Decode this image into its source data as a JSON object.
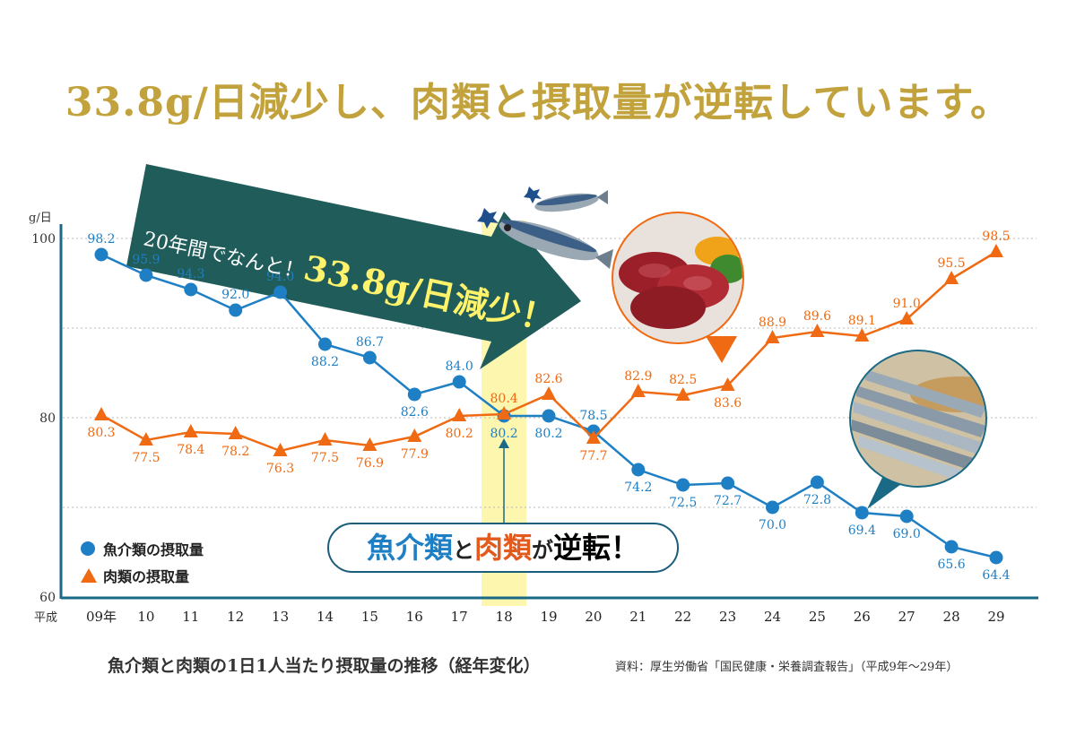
{
  "headline": "33.8g/日減少し、肉類と摂取量が逆転しています。",
  "banner": {
    "prefix": "20年間でなんと！",
    "amount": "33.8g/日減少！"
  },
  "callout": {
    "part1": "魚介類",
    "part2": "と",
    "part3": "肉類",
    "part4": "が",
    "part5": "逆転！"
  },
  "legend": {
    "fish": "魚介類の摂取量",
    "meat": "肉類の摂取量"
  },
  "caption": "魚介類と肉類の1日1人当たり摂取量の推移（経年変化）",
  "source": "資料：厚生労働省「国民健康・栄養調査報告」（平成9年〜29年）",
  "chart_data": {
    "type": "line",
    "ylabel": "g/日",
    "xlabel_prefix": "平成",
    "ylim": [
      60,
      100
    ],
    "yticks": [
      60,
      80,
      100
    ],
    "grid": true,
    "legend_position": "bottom-left",
    "highlight_category": "18",
    "categories": [
      "09年",
      "10",
      "11",
      "12",
      "13",
      "14",
      "15",
      "16",
      "17",
      "18",
      "19",
      "20",
      "21",
      "22",
      "23",
      "24",
      "25",
      "26",
      "27",
      "28",
      "29"
    ],
    "series": [
      {
        "name": "魚介類の摂取量",
        "color": "#1f7fc4",
        "marker": "circle",
        "values": [
          98.2,
          95.9,
          94.3,
          92.0,
          94.0,
          88.2,
          86.7,
          82.6,
          84.0,
          80.2,
          80.2,
          78.5,
          74.2,
          72.5,
          72.7,
          70.0,
          72.8,
          69.4,
          69.0,
          65.6,
          64.4
        ]
      },
      {
        "name": "肉類の摂取量",
        "color": "#ef6a12",
        "marker": "triangle",
        "values": [
          80.3,
          77.5,
          78.4,
          78.2,
          76.3,
          77.5,
          76.9,
          77.9,
          80.2,
          80.4,
          82.6,
          77.7,
          82.9,
          82.5,
          83.6,
          88.9,
          89.6,
          89.1,
          91.0,
          95.5,
          98.5
        ]
      }
    ],
    "fish_label_positions": [
      "above",
      "above",
      "above",
      "above",
      "above",
      "below",
      "above",
      "below",
      "above",
      "below",
      "below",
      "above",
      "below",
      "below",
      "below",
      "below",
      "below",
      "below",
      "below",
      "below",
      "below"
    ],
    "meat_label_positions": [
      "below",
      "below",
      "below",
      "below",
      "below",
      "below",
      "below",
      "below",
      "below",
      "above",
      "above",
      "below",
      "above",
      "above",
      "below",
      "above",
      "above",
      "above",
      "above",
      "above",
      "above"
    ]
  }
}
